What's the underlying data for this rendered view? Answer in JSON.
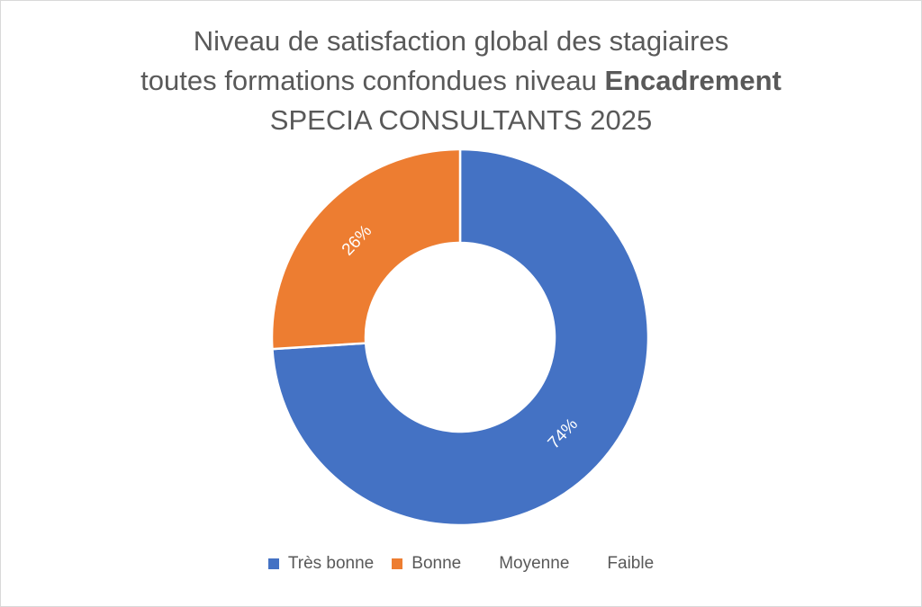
{
  "chart_data": {
    "type": "pie",
    "variant": "doughnut",
    "title": {
      "line1": "Niveau de satisfaction global des stagiaires",
      "line2_prefix": "toutes formations confondues niveau ",
      "line2_bold": "Encadrement",
      "line3": "SPECIA CONSULTANTS 2025"
    },
    "categories": [
      "Très bonne",
      "Bonne",
      "Moyenne",
      "Faible"
    ],
    "values": [
      74,
      26,
      0,
      0
    ],
    "data_labels": [
      "74%",
      "26%",
      "",
      ""
    ],
    "colors": [
      "#4472C4",
      "#ED7D31",
      "#A5A5A5",
      "#FFC000"
    ],
    "legend_position": "bottom"
  }
}
